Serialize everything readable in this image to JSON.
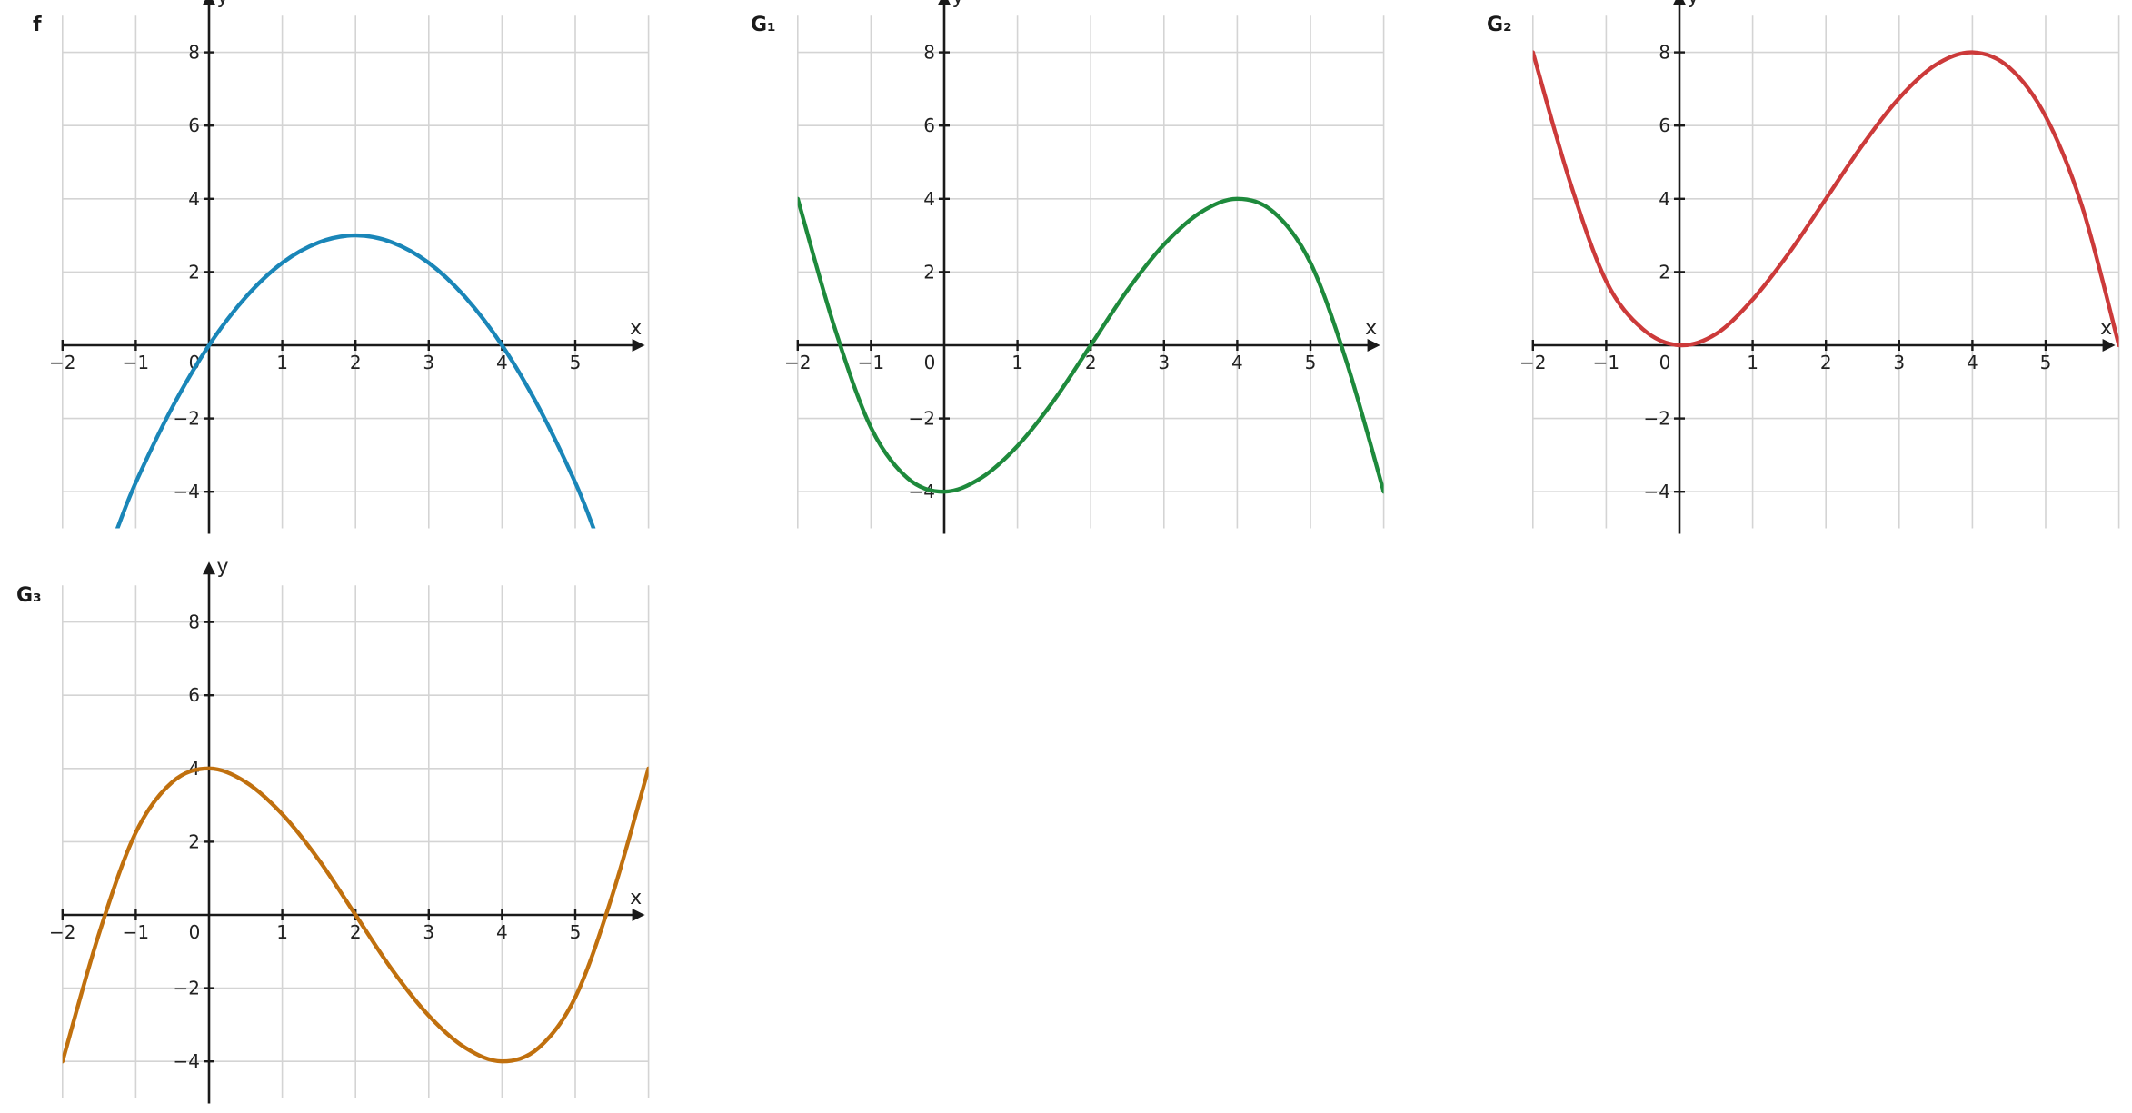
{
  "chart_data": [
    {
      "type": "line",
      "title": "f",
      "xlabel": "x",
      "ylabel": "y",
      "xlim": [
        -2,
        6
      ],
      "ylim": [
        -5,
        9
      ],
      "xticks": [
        -2,
        -1,
        0,
        1,
        2,
        3,
        4,
        5
      ],
      "xtick_labels": [
        "−2",
        "−1",
        "0",
        "1",
        "2",
        "3",
        "4",
        "5"
      ],
      "yticks": [
        -4,
        -2,
        2,
        4,
        6,
        8
      ],
      "ytick_labels": [
        "−4",
        "−2",
        "2",
        "4",
        "6",
        "8"
      ],
      "grid": true,
      "color": "#1a86b8",
      "series": [
        {
          "x": [
            -1.25,
            -1,
            -0.5,
            0,
            0.5,
            1,
            1.5,
            2,
            2.5,
            3,
            3.5,
            4,
            4.5,
            5,
            5.25
          ],
          "y": [
            -5,
            -3.75,
            -1.69,
            0,
            1.31,
            2.25,
            2.81,
            3,
            2.81,
            2.25,
            1.31,
            0,
            -1.69,
            -3.75,
            -5
          ]
        }
      ]
    },
    {
      "type": "line",
      "title": "G₁",
      "xlabel": "x",
      "ylabel": "y",
      "xlim": [
        -2,
        6
      ],
      "ylim": [
        -5,
        9
      ],
      "xticks": [
        -2,
        -1,
        0,
        1,
        2,
        3,
        4,
        5
      ],
      "xtick_labels": [
        "−2",
        "−1",
        "0",
        "1",
        "2",
        "3",
        "4",
        "5"
      ],
      "yticks": [
        -4,
        -2,
        2,
        4,
        6,
        8
      ],
      "ytick_labels": [
        "−4",
        "−2",
        "2",
        "4",
        "6",
        "8"
      ],
      "grid": true,
      "color": "#1e8a3c",
      "series": [
        {
          "x": [
            -2,
            -1.5,
            -1,
            -0.5,
            0,
            0.5,
            1,
            1.5,
            2,
            2.5,
            3,
            3.5,
            4,
            4.5,
            5,
            5.5,
            6
          ],
          "y": [
            4,
            0.5,
            -2.25,
            -3.63,
            -4,
            -3.63,
            -2.75,
            -1.5,
            0,
            1.5,
            2.75,
            3.63,
            4,
            3.63,
            2.25,
            -0.5,
            -4
          ]
        }
      ]
    },
    {
      "type": "line",
      "title": "G₂",
      "xlabel": "x",
      "ylabel": "y",
      "xlim": [
        -2,
        6
      ],
      "ylim": [
        -5,
        9
      ],
      "xticks": [
        -2,
        -1,
        0,
        1,
        2,
        3,
        4,
        5
      ],
      "xtick_labels": [
        "−2",
        "−1",
        "0",
        "1",
        "2",
        "3",
        "4",
        "5"
      ],
      "yticks": [
        -4,
        -2,
        2,
        4,
        6,
        8
      ],
      "ytick_labels": [
        "−4",
        "−2",
        "2",
        "4",
        "6",
        "8"
      ],
      "grid": true,
      "color": "#cc3a3a",
      "series": [
        {
          "x": [
            -2,
            -1.5,
            -1,
            -0.5,
            0,
            0.5,
            1,
            1.5,
            2,
            2.5,
            3,
            3.5,
            4,
            4.5,
            5,
            5.5,
            6
          ],
          "y": [
            8,
            4.5,
            1.75,
            0.44,
            0,
            0.31,
            1.25,
            2.53,
            4,
            5.47,
            6.75,
            7.66,
            8,
            7.59,
            6.25,
            3.78,
            0
          ]
        }
      ]
    },
    {
      "type": "line",
      "title": "G₃",
      "xlabel": "x",
      "ylabel": "y",
      "xlim": [
        -2,
        6
      ],
      "ylim": [
        -5,
        9
      ],
      "xticks": [
        -2,
        -1,
        0,
        1,
        2,
        3,
        4,
        5
      ],
      "xtick_labels": [
        "−2",
        "−1",
        "0",
        "1",
        "2",
        "3",
        "4",
        "5"
      ],
      "yticks": [
        -4,
        -2,
        2,
        4,
        6,
        8
      ],
      "ytick_labels": [
        "−4",
        "−2",
        "2",
        "4",
        "6",
        "8"
      ],
      "grid": true,
      "color": "#c0700e",
      "series": [
        {
          "x": [
            -2,
            -1.5,
            -1,
            -0.5,
            0,
            0.5,
            1,
            1.5,
            2,
            2.5,
            3,
            3.5,
            4,
            4.5,
            5,
            5.5,
            6
          ],
          "y": [
            -4,
            -0.5,
            2.25,
            3.63,
            4,
            3.63,
            2.75,
            1.5,
            0,
            -1.5,
            -2.75,
            -3.63,
            -4,
            -3.63,
            -2.25,
            0.5,
            4
          ]
        }
      ]
    }
  ]
}
